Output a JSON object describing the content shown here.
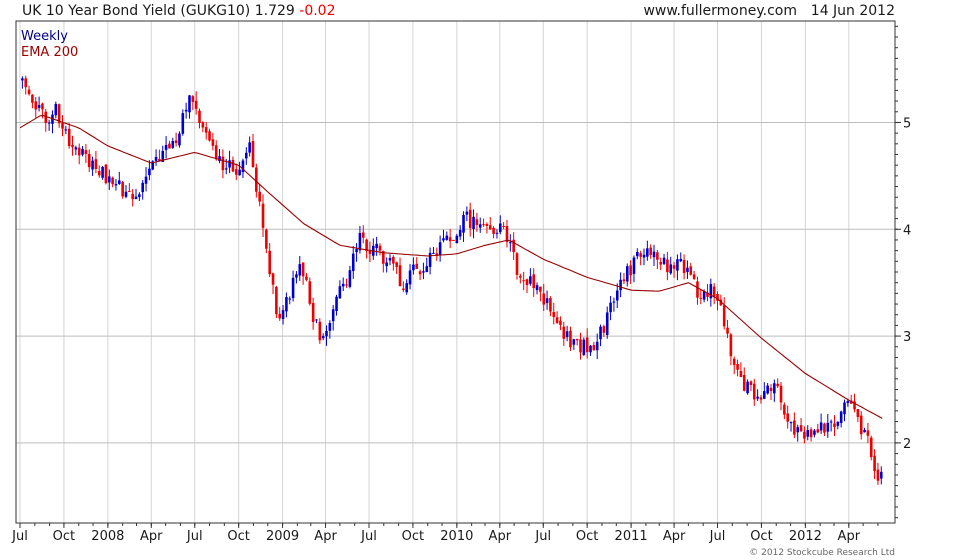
{
  "header": {
    "title": "UK 10 Year Bond Yield (GUKG10)",
    "last": "1.729",
    "change": "-0.02",
    "website": "www.fullermoney.com",
    "date": "14 Jun 2012"
  },
  "footer": {
    "copyright": "© 2012 Stockcube Research Ltd"
  },
  "colors": {
    "up": "#0000cc",
    "down": "#ee0000",
    "ema": "#990000",
    "grid": "#d4d4d4"
  },
  "chart_data": {
    "type": "candlestick",
    "frequency": "Weekly",
    "x_range": [
      "2007-07",
      "2012-06"
    ],
    "x_ticks": [
      "Jul",
      "Oct",
      "2008",
      "Apr",
      "Jul",
      "Oct",
      "2009",
      "Apr",
      "Jul",
      "Oct",
      "2010",
      "Apr",
      "Jul",
      "Oct",
      "2011",
      "Apr",
      "Jul",
      "Oct",
      "2012",
      "Apr"
    ],
    "y_ticks": [
      "2",
      "3",
      "4",
      "5"
    ],
    "ylim": [
      1.25,
      5.95
    ],
    "legend": [
      {
        "name": "Weekly",
        "color": "#000080"
      },
      {
        "name": "EMA 200",
        "color": "#990000"
      }
    ],
    "price_path": [
      [
        "2007-07-01",
        5.4
      ],
      [
        "2007-08-15",
        5.05
      ],
      [
        "2007-09-15",
        5.1
      ],
      [
        "2007-10-20",
        4.75
      ],
      [
        "2007-12-15",
        4.55
      ],
      [
        "2008-01-20",
        4.4
      ],
      [
        "2008-03-01",
        4.35
      ],
      [
        "2008-04-15",
        4.7
      ],
      [
        "2008-05-20",
        4.85
      ],
      [
        "2008-06-20",
        5.2
      ],
      [
        "2008-07-20",
        5.0
      ],
      [
        "2008-08-20",
        4.65
      ],
      [
        "2008-10-01",
        4.55
      ],
      [
        "2008-10-25",
        4.75
      ],
      [
        "2008-11-20",
        4.05
      ],
      [
        "2008-12-25",
        3.1
      ],
      [
        "2009-01-15",
        3.4
      ],
      [
        "2009-02-10",
        3.65
      ],
      [
        "2009-03-20",
        2.95
      ],
      [
        "2009-05-15",
        3.55
      ],
      [
        "2009-06-10",
        3.9
      ],
      [
        "2009-08-01",
        3.75
      ],
      [
        "2009-09-10",
        3.5
      ],
      [
        "2009-11-10",
        3.75
      ],
      [
        "2009-12-20",
        3.9
      ],
      [
        "2010-01-20",
        4.1
      ],
      [
        "2010-03-05",
        4.0
      ],
      [
        "2010-04-05",
        4.05
      ],
      [
        "2010-05-10",
        3.6
      ],
      [
        "2010-06-20",
        3.45
      ],
      [
        "2010-08-25",
        2.95
      ],
      [
        "2010-10-15",
        2.9
      ],
      [
        "2010-11-20",
        3.25
      ],
      [
        "2010-12-20",
        3.55
      ],
      [
        "2011-01-25",
        3.85
      ],
      [
        "2011-02-25",
        3.75
      ],
      [
        "2011-03-25",
        3.65
      ],
      [
        "2011-04-15",
        3.7
      ],
      [
        "2011-05-25",
        3.35
      ],
      [
        "2011-06-20",
        3.45
      ],
      [
        "2011-07-20",
        3.05
      ],
      [
        "2011-08-15",
        2.55
      ],
      [
        "2011-09-25",
        2.45
      ],
      [
        "2011-10-30",
        2.6
      ],
      [
        "2011-11-25",
        2.25
      ],
      [
        "2011-12-25",
        2.05
      ],
      [
        "2012-02-05",
        2.15
      ],
      [
        "2012-03-10",
        2.2
      ],
      [
        "2012-03-25",
        2.4
      ],
      [
        "2012-04-20",
        2.2
      ],
      [
        "2012-05-10",
        2.05
      ],
      [
        "2012-05-25",
        1.75
      ],
      [
        "2012-06-03",
        1.55
      ],
      [
        "2012-06-14",
        1.73
      ]
    ],
    "ema_200": [
      [
        "2007-07-01",
        4.95
      ],
      [
        "2007-08-15",
        5.07
      ],
      [
        "2007-11-01",
        4.95
      ],
      [
        "2008-01-01",
        4.78
      ],
      [
        "2008-04-01",
        4.62
      ],
      [
        "2008-07-01",
        4.72
      ],
      [
        "2008-10-01",
        4.6
      ],
      [
        "2008-12-01",
        4.35
      ],
      [
        "2009-02-15",
        4.05
      ],
      [
        "2009-05-01",
        3.85
      ],
      [
        "2009-08-01",
        3.78
      ],
      [
        "2009-11-01",
        3.75
      ],
      [
        "2010-01-01",
        3.77
      ],
      [
        "2010-03-01",
        3.85
      ],
      [
        "2010-04-20",
        3.9
      ],
      [
        "2010-07-01",
        3.72
      ],
      [
        "2010-10-01",
        3.55
      ],
      [
        "2011-01-01",
        3.43
      ],
      [
        "2011-03-01",
        3.42
      ],
      [
        "2011-05-01",
        3.5
      ],
      [
        "2011-07-01",
        3.35
      ],
      [
        "2011-10-01",
        2.98
      ],
      [
        "2012-01-01",
        2.65
      ],
      [
        "2012-04-01",
        2.4
      ],
      [
        "2012-06-14",
        2.22
      ]
    ]
  }
}
